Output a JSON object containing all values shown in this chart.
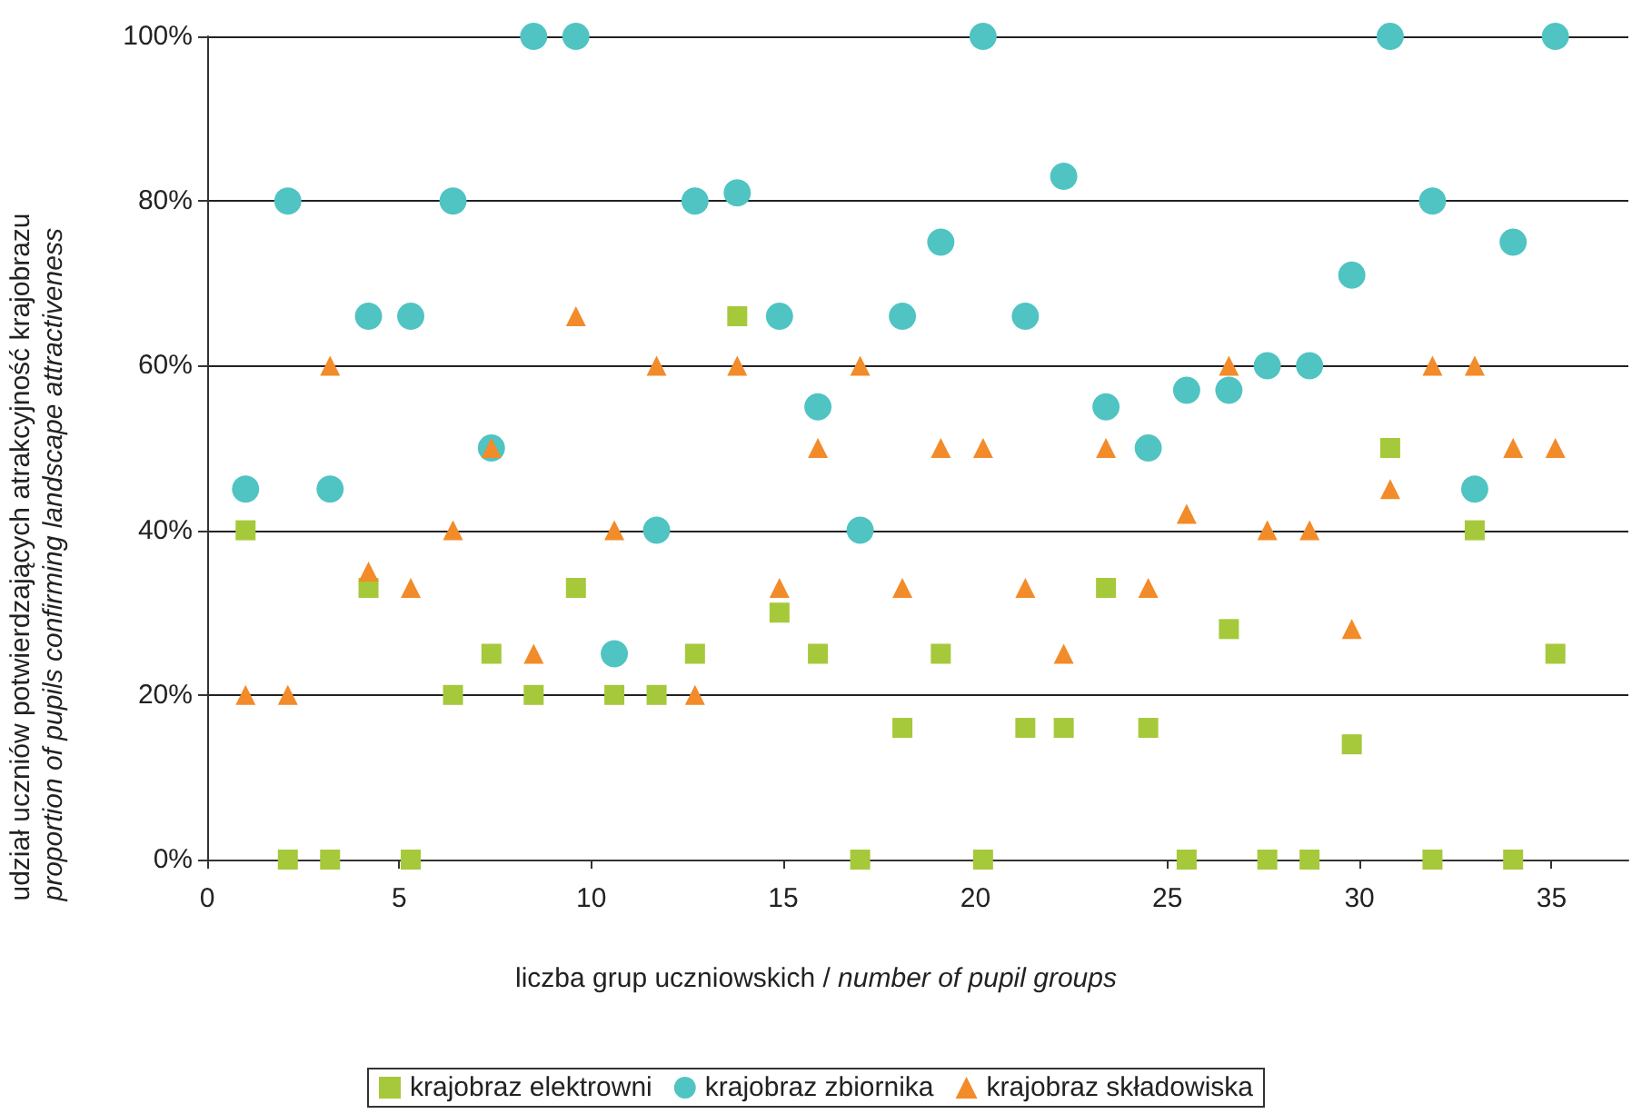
{
  "chart_data": {
    "type": "scatter",
    "xlabel": "liczba grup uczniowskich / number of pupil groups",
    "ylabel": "udział uczniów potwierdzających atrakcyjność krajobrazu\nproportion of pupils confirming landscape attractiveness",
    "x": [
      1.0,
      2.1,
      3.2,
      4.2,
      5.3,
      6.4,
      7.4,
      8.5,
      9.6,
      10.6,
      11.7,
      12.7,
      13.8,
      14.9,
      15.9,
      17.0,
      18.1,
      19.1,
      20.2,
      21.3,
      22.3,
      23.4,
      24.5,
      25.5,
      26.6,
      27.6,
      28.7,
      29.8,
      30.8,
      31.9,
      33.0,
      34.0,
      35.1
    ],
    "series": [
      {
        "name": "krajobraz elektrowni",
        "color": "#a5c93b",
        "marker": "square",
        "values": [
          40,
          0,
          0,
          33,
          0,
          20,
          25,
          20,
          33,
          20,
          20,
          25,
          66,
          30,
          25,
          0,
          16,
          25,
          0,
          16,
          16,
          33,
          16,
          0,
          28,
          0,
          0,
          14,
          50,
          0,
          40,
          0,
          25
        ]
      },
      {
        "name": "krajobraz zbiornika",
        "color": "#4fc4c2",
        "marker": "circle",
        "values": [
          45,
          80,
          45,
          66,
          66,
          80,
          50,
          100,
          100,
          25,
          40,
          80,
          81,
          66,
          55,
          40,
          66,
          75,
          100,
          66,
          83,
          55,
          50,
          57,
          57,
          60,
          60,
          71,
          100,
          80,
          45,
          75,
          100
        ]
      },
      {
        "name": "krajobraz składowiska",
        "color": "#f28b29",
        "marker": "triangle",
        "values": [
          20,
          20,
          60,
          35,
          33,
          40,
          50,
          25,
          66,
          40,
          60,
          20,
          60,
          33,
          50,
          60,
          33,
          50,
          50,
          33,
          25,
          50,
          33,
          42,
          60,
          40,
          40,
          28,
          45,
          60,
          60,
          50,
          50
        ]
      }
    ],
    "xlim": [
      0,
      37
    ],
    "xticks": [
      0,
      5,
      10,
      15,
      20,
      25,
      30,
      35
    ],
    "ylim": [
      0,
      100
    ],
    "yticks": [
      {
        "value": 0,
        "label": "0%"
      },
      {
        "value": 20,
        "label": "20%"
      },
      {
        "value": 40,
        "label": "40%"
      },
      {
        "value": 60,
        "label": "60%"
      },
      {
        "value": 80,
        "label": "80%"
      },
      {
        "value": 100,
        "label": "100%"
      }
    ],
    "grid": "y",
    "legend": "bottom"
  }
}
